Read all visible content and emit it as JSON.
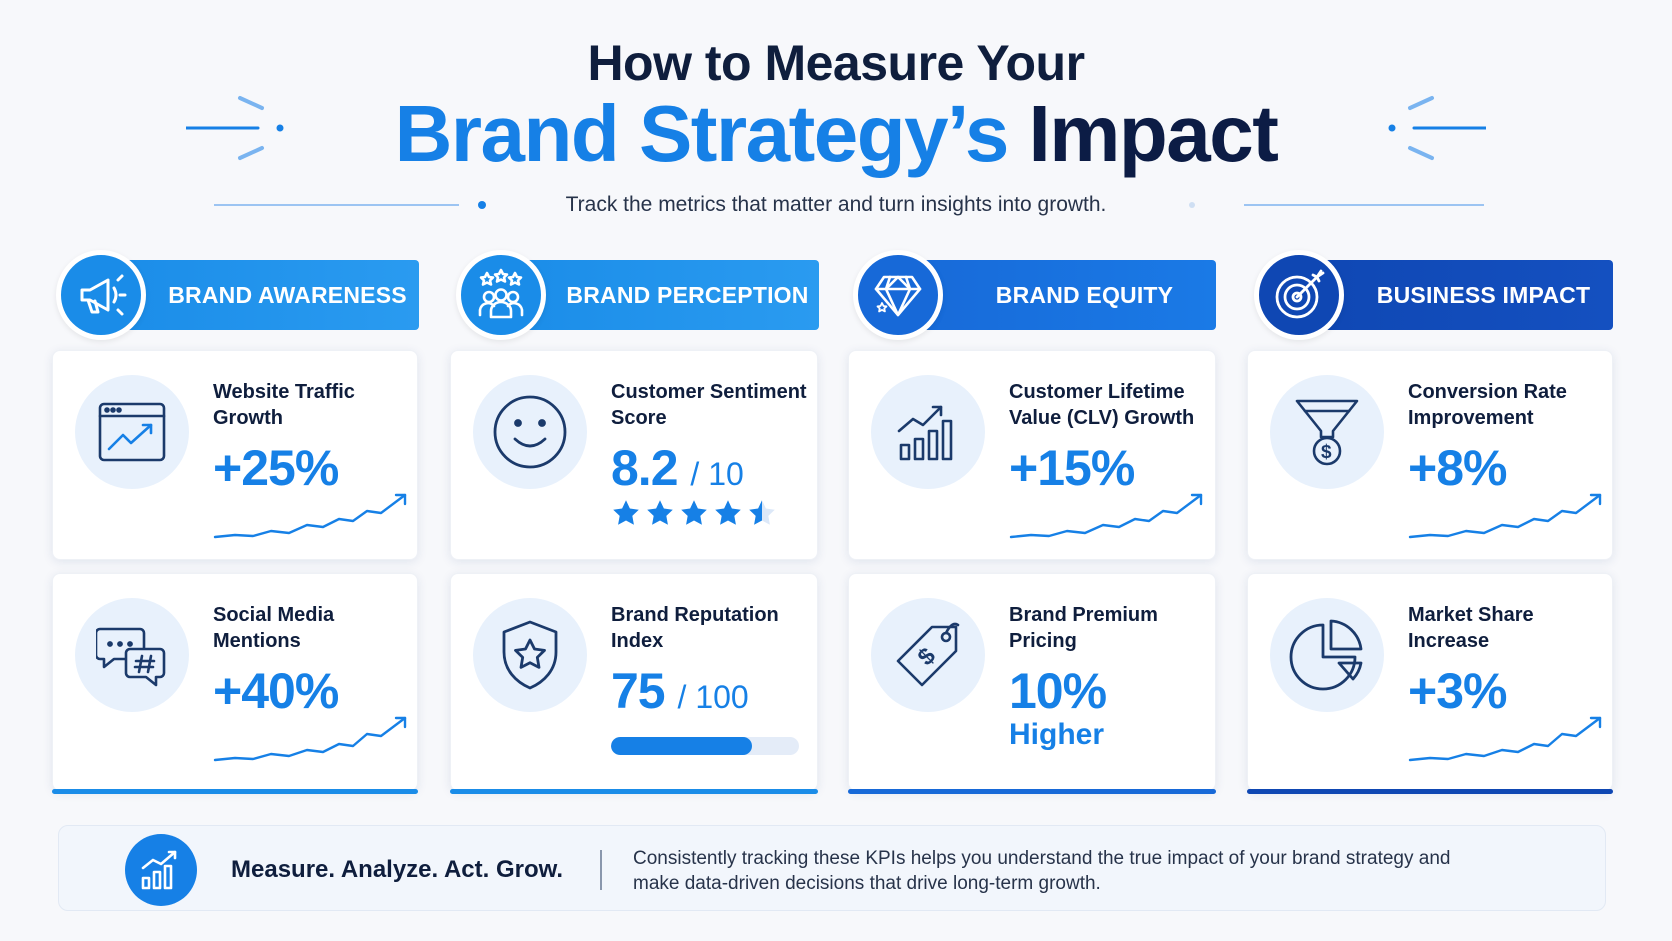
{
  "header": {
    "title_line1": "How to Measure Your",
    "title_line2_blue": "Brand Strategy’s",
    "title_line2_dark": "Impact",
    "subtitle": "Track the metrics that matter and turn insights into growth."
  },
  "colors": {
    "brand_awareness": "#1a8ce8",
    "brand_perception": "#1a8ce8",
    "brand_equity": "#1769d8",
    "business_impact": "#0f47b3"
  },
  "columns": [
    {
      "title": "BRAND AWARENESS",
      "icon": "megaphone-icon",
      "cards": [
        {
          "label": "Website Traffic Growth",
          "value": "+25%",
          "icon": "browser-chart-icon",
          "trend": "up"
        },
        {
          "label": "Social Media Mentions",
          "value": "+40%",
          "icon": "chat-hashtag-icon",
          "trend": "up"
        }
      ]
    },
    {
      "title": "BRAND PERCEPTION",
      "icon": "people-stars-icon",
      "cards": [
        {
          "label": "Customer Sentiment Score",
          "value": "8.2",
          "suffix": "/ 10",
          "icon": "smiley-icon",
          "stars": 5,
          "stars_filled": 4.5
        },
        {
          "label": "Brand Reputation Index",
          "value": "75",
          "suffix": "/ 100",
          "icon": "shield-star-icon",
          "progress": 0.75
        }
      ]
    },
    {
      "title": "BRAND EQUITY",
      "icon": "diamond-icon",
      "cards": [
        {
          "label": "Customer Lifetime Value (CLV) Growth",
          "value": "+15%",
          "icon": "bar-growth-icon",
          "trend": "up"
        },
        {
          "label": "Brand Premium Pricing",
          "value": "10%",
          "value_sub": "Higher",
          "icon": "price-tag-icon"
        }
      ]
    },
    {
      "title": "BUSINESS IMPACT",
      "icon": "target-icon",
      "cards": [
        {
          "label": "Conversion Rate Improvement",
          "value": "+8%",
          "icon": "funnel-dollar-icon",
          "trend": "up"
        },
        {
          "label": "Market Share Increase",
          "value": "+3%",
          "icon": "pie-chart-icon",
          "trend": "up"
        }
      ]
    }
  ],
  "footer": {
    "tagline": "Measure. Analyze. Act. Grow.",
    "text": "Consistently tracking these KPIs helps you understand the true impact of your brand strategy and make data-driven decisions that drive long-term growth."
  }
}
